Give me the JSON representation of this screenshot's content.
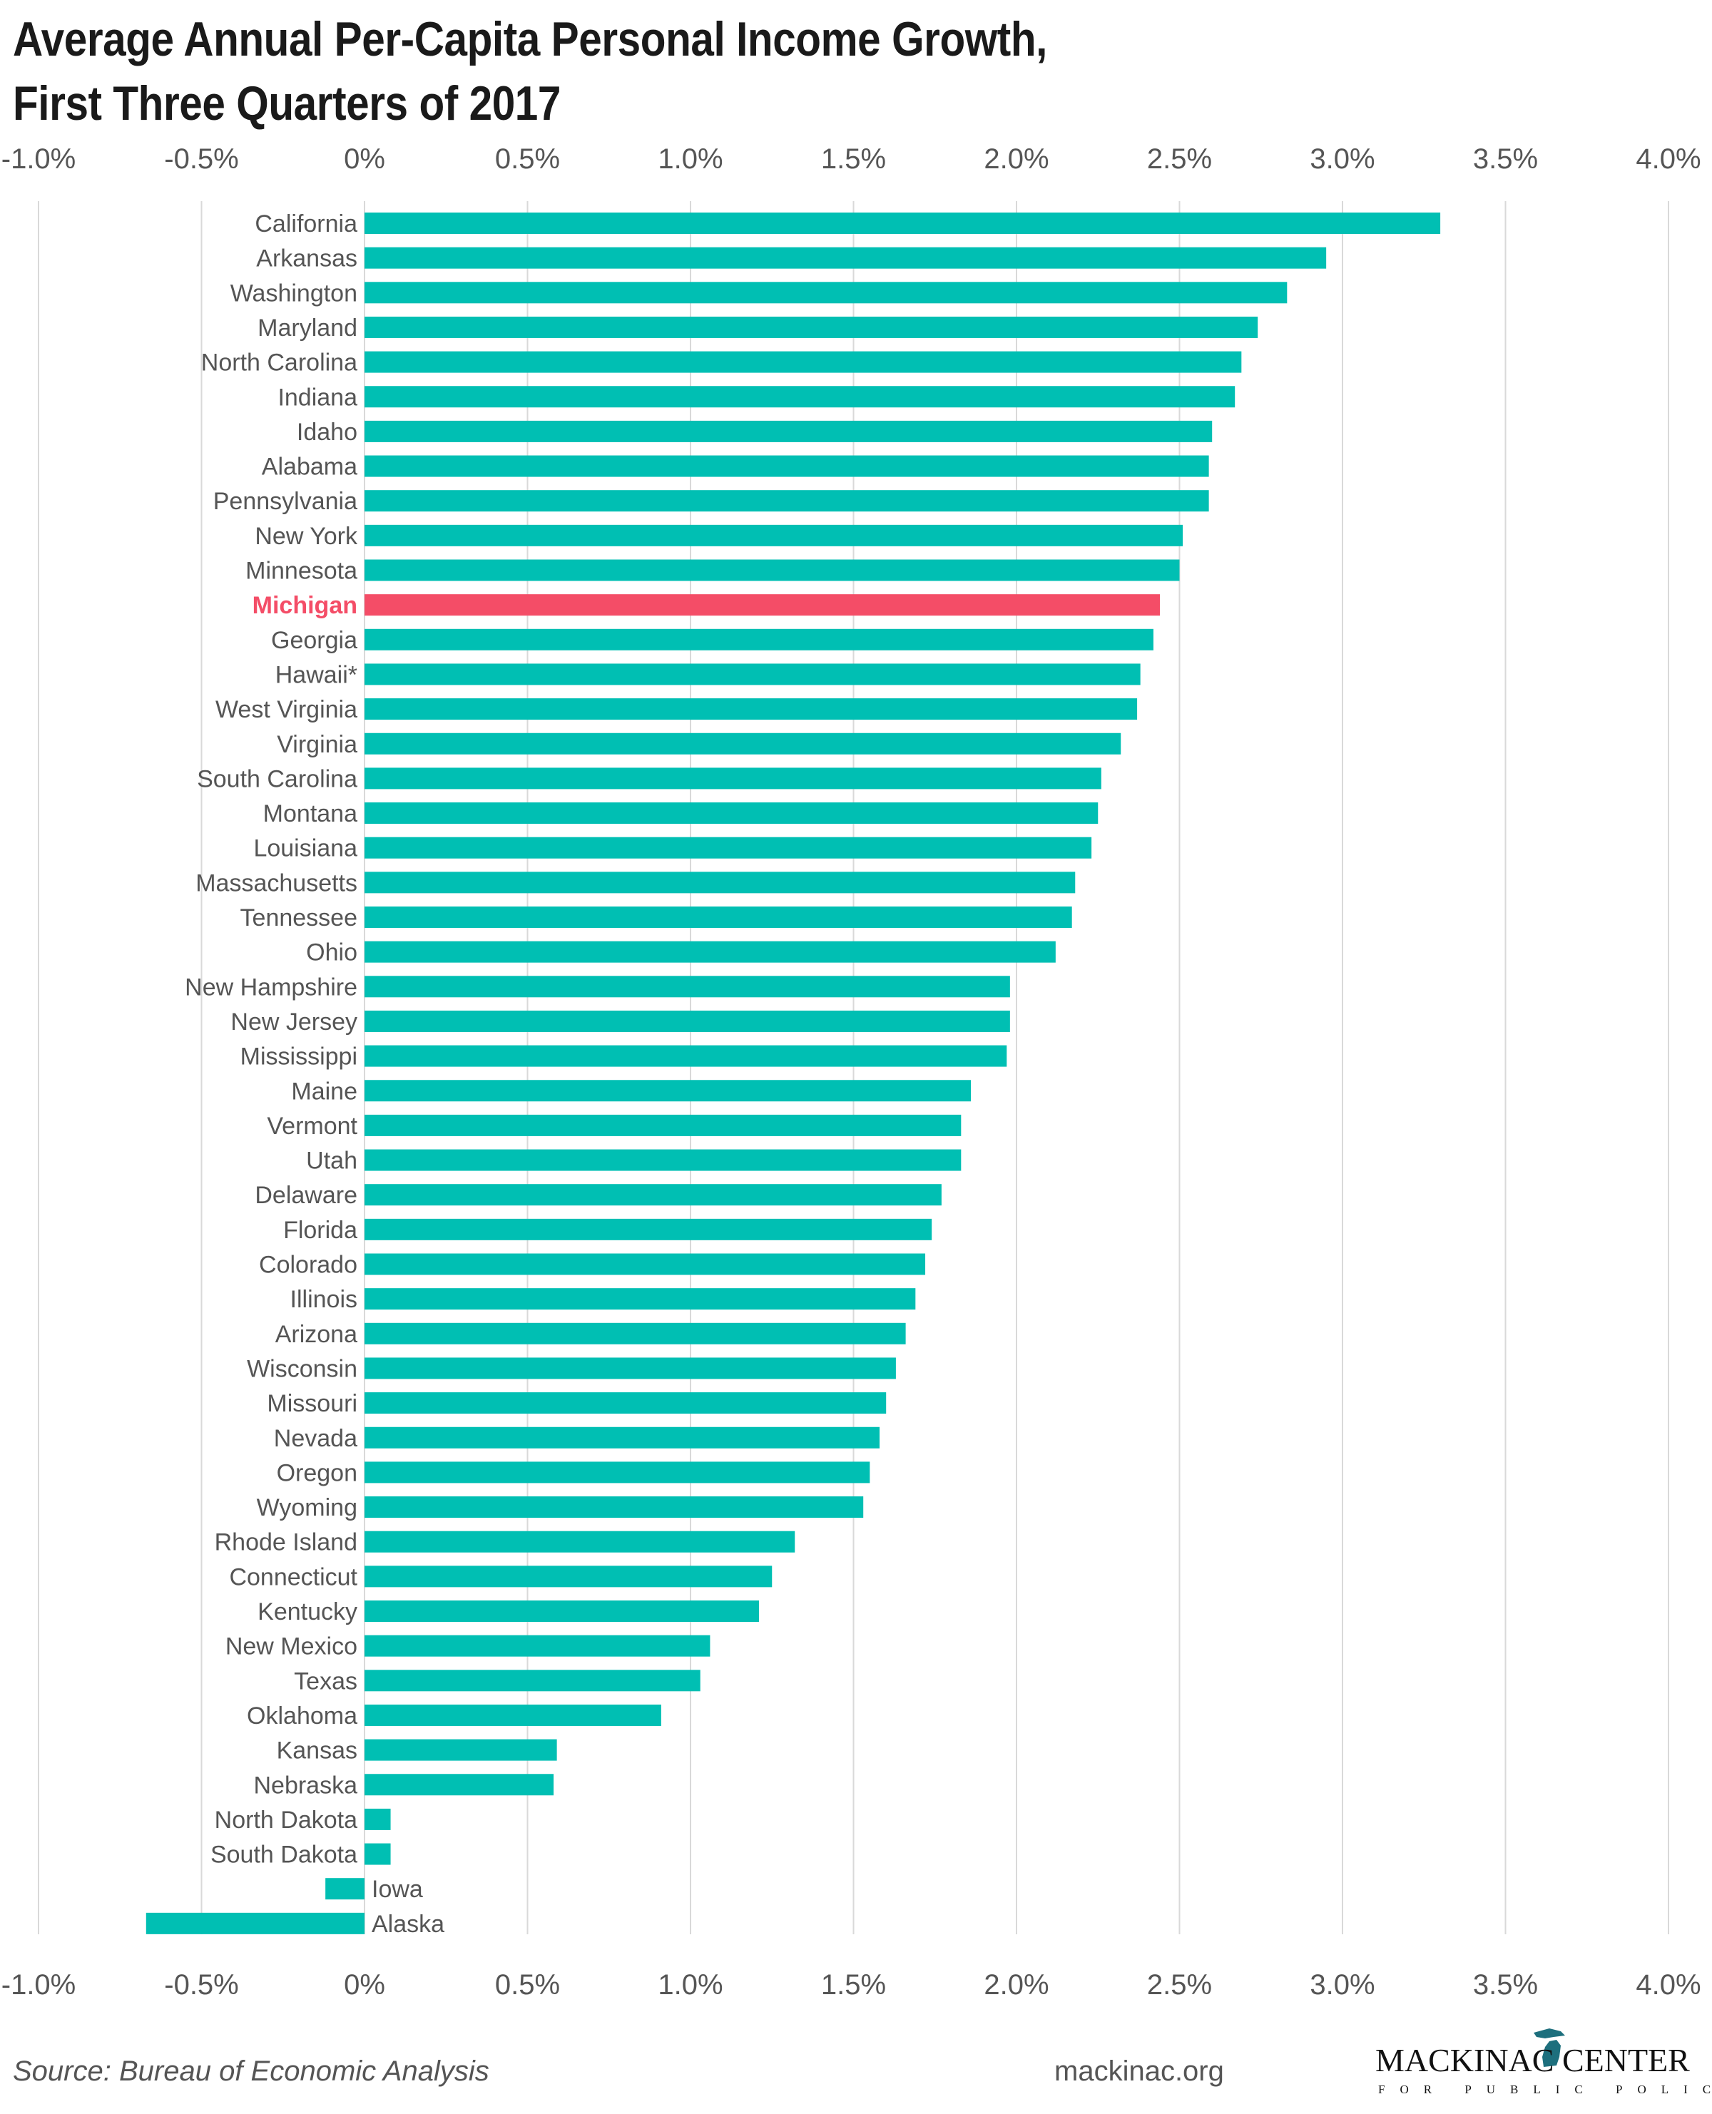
{
  "title_line1": "Average Annual Per-Capita Personal Income Growth,",
  "title_line2": "First Three Quarters of 2017",
  "source": "Source: Bureau of Economic Analysis",
  "website": "mackinac.org",
  "logo": {
    "name": "MACKINAC CENTER",
    "tagline": "FOR PUBLIC POLICY",
    "icon": "michigan-map-icon"
  },
  "colors": {
    "bar": "#00bfb3",
    "highlight": "#f44d67",
    "grid": "#d9d9d9",
    "text": "#555555"
  },
  "chart_data": {
    "type": "bar",
    "orientation": "horizontal",
    "title": "Average Annual Per-Capita Personal Income Growth, First Three Quarters of 2017",
    "xlim": [
      -1.0,
      4.0
    ],
    "xticks": [
      "-1.0%",
      "-0.5%",
      "0%",
      "0.5%",
      "1.0%",
      "1.5%",
      "2.0%",
      "2.5%",
      "3.0%",
      "3.5%",
      "4.0%"
    ],
    "xtick_values": [
      -1.0,
      -0.5,
      0,
      0.5,
      1.0,
      1.5,
      2.0,
      2.5,
      3.0,
      3.5,
      4.0
    ],
    "grid": true,
    "highlight": "Michigan",
    "categories": [
      "California",
      "Arkansas",
      "Washington",
      "Maryland",
      "North Carolina",
      "Indiana",
      "Idaho",
      "Alabama",
      "Pennsylvania",
      "New York",
      "Minnesota",
      "Michigan",
      "Georgia",
      "Hawaii*",
      "West Virginia",
      "Virginia",
      "South Carolina",
      "Montana",
      "Louisiana",
      "Massachusetts",
      "Tennessee",
      "Ohio",
      "New Hampshire",
      "New Jersey",
      "Mississippi",
      "Maine",
      "Vermont",
      "Utah",
      "Delaware",
      "Florida",
      "Colorado",
      "Illinois",
      "Arizona",
      "Wisconsin",
      "Missouri",
      "Nevada",
      "Oregon",
      "Wyoming",
      "Rhode Island",
      "Connecticut",
      "Kentucky",
      "New Mexico",
      "Texas",
      "Oklahoma",
      "Kansas",
      "Nebraska",
      "North Dakota",
      "South Dakota",
      "Iowa",
      "Alaska"
    ],
    "values": [
      3.3,
      2.95,
      2.83,
      2.74,
      2.69,
      2.67,
      2.6,
      2.59,
      2.59,
      2.51,
      2.5,
      2.44,
      2.42,
      2.38,
      2.37,
      2.32,
      2.26,
      2.25,
      2.23,
      2.18,
      2.17,
      2.12,
      1.98,
      1.98,
      1.97,
      1.86,
      1.83,
      1.83,
      1.77,
      1.74,
      1.72,
      1.69,
      1.66,
      1.63,
      1.6,
      1.58,
      1.55,
      1.53,
      1.32,
      1.25,
      1.21,
      1.06,
      1.03,
      0.91,
      0.59,
      0.58,
      0.08,
      0.08,
      -0.12,
      -0.67
    ]
  }
}
